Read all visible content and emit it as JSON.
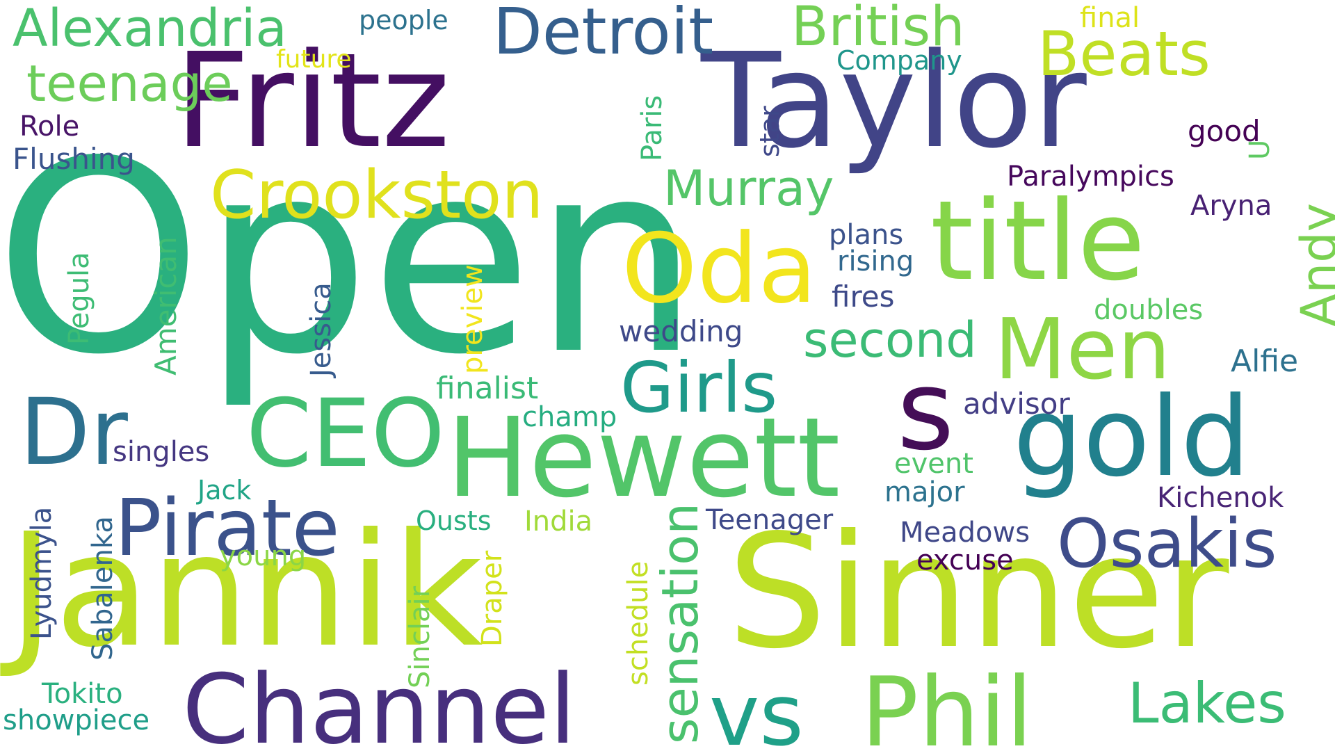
{
  "words": [
    {
      "text": "Open",
      "color": "#2ab07f"
    },
    {
      "text": "Jannik",
      "color": "#bddf26"
    },
    {
      "text": "Sinner",
      "color": "#bddf26"
    },
    {
      "text": "Fritz",
      "color": "#440f62"
    },
    {
      "text": "Taylor",
      "color": "#414487"
    },
    {
      "text": "Hewett",
      "color": "#52c569"
    },
    {
      "text": "title",
      "color": "#86d549"
    },
    {
      "text": "gold",
      "color": "#21808d"
    },
    {
      "text": "Channel",
      "color": "#472f7d"
    },
    {
      "text": "Phil",
      "color": "#7ad151"
    },
    {
      "text": "Oda",
      "color": "#f2e51d"
    },
    {
      "text": "Men",
      "color": "#8ed645"
    },
    {
      "text": "CEO",
      "color": "#42be71"
    },
    {
      "text": "Pirate",
      "color": "#3b528b"
    },
    {
      "text": "Crookston",
      "color": "#e0e11d"
    },
    {
      "text": "Detroit",
      "color": "#355f8d"
    },
    {
      "text": "Dr",
      "color": "#2d708e"
    },
    {
      "text": "vs",
      "color": "#1fa088"
    },
    {
      "text": "s",
      "color": "#440e57"
    },
    {
      "text": "Girls",
      "color": "#1f9a8a"
    },
    {
      "text": "Osakis",
      "color": "#3e4c8a"
    },
    {
      "text": "Lakes",
      "color": "#3bbc75"
    },
    {
      "text": "Beats",
      "color": "#c0df25"
    },
    {
      "text": "British",
      "color": "#74d055"
    },
    {
      "text": "Alexandria",
      "color": "#4ac16d"
    },
    {
      "text": "Murray",
      "color": "#54c568"
    },
    {
      "text": "second",
      "color": "#3bbb75"
    },
    {
      "text": "teenage",
      "color": "#6ccd5a"
    },
    {
      "text": "sensation",
      "color": "#4ac16d"
    },
    {
      "text": "Andy",
      "color": "#7ad151"
    },
    {
      "text": "people",
      "color": "#2c728e"
    },
    {
      "text": "final",
      "color": "#dde318"
    },
    {
      "text": "future",
      "color": "#e2e418"
    },
    {
      "text": "Company",
      "color": "#1f968b"
    },
    {
      "text": "Role",
      "color": "#481467"
    },
    {
      "text": "Flushing",
      "color": "#3a548c"
    },
    {
      "text": "Paris",
      "color": "#3aba76"
    },
    {
      "text": "star",
      "color": "#3f4889"
    },
    {
      "text": "good",
      "color": "#440154"
    },
    {
      "text": "U",
      "color": "#5ec962"
    },
    {
      "text": "Paralympics",
      "color": "#46085c"
    },
    {
      "text": "Aryna",
      "color": "#482173"
    },
    {
      "text": "plans",
      "color": "#3b528b"
    },
    {
      "text": "rising",
      "color": "#31688e"
    },
    {
      "text": "fires",
      "color": "#3e4a89"
    },
    {
      "text": "doubles",
      "color": "#5ac864"
    },
    {
      "text": "wedding",
      "color": "#3e4989"
    },
    {
      "text": "Alfie",
      "color": "#2d718e"
    },
    {
      "text": "advisor",
      "color": "#433e85"
    },
    {
      "text": "finalist",
      "color": "#3aba76"
    },
    {
      "text": "champ",
      "color": "#26ad81"
    },
    {
      "text": "event",
      "color": "#50c46a"
    },
    {
      "text": "major",
      "color": "#2c728e"
    },
    {
      "text": "Kichenok",
      "color": "#482475"
    },
    {
      "text": "singles",
      "color": "#453781"
    },
    {
      "text": "Jack",
      "color": "#20a486"
    },
    {
      "text": "Ousts",
      "color": "#29af7f"
    },
    {
      "text": "India",
      "color": "#a0da39"
    },
    {
      "text": "Teenager",
      "color": "#3e4989"
    },
    {
      "text": "Meadows",
      "color": "#3f4788"
    },
    {
      "text": "excuse",
      "color": "#440154"
    },
    {
      "text": "young",
      "color": "#8bd646"
    },
    {
      "text": "Tokito",
      "color": "#2ab07f"
    },
    {
      "text": "showpiece",
      "color": "#1f9e89"
    },
    {
      "text": "Pegula",
      "color": "#3dbc74"
    },
    {
      "text": "American",
      "color": "#40bd72"
    },
    {
      "text": "Jessica",
      "color": "#375b8d"
    },
    {
      "text": "preview",
      "color": "#f1e51d"
    },
    {
      "text": "Lyudmyla",
      "color": "#3b528b"
    },
    {
      "text": "Sabalenka",
      "color": "#31668e"
    },
    {
      "text": "Sinclair",
      "color": "#73d056"
    },
    {
      "text": "Draper",
      "color": "#d2e21b"
    },
    {
      "text": "schedule",
      "color": "#c2df23"
    }
  ]
}
